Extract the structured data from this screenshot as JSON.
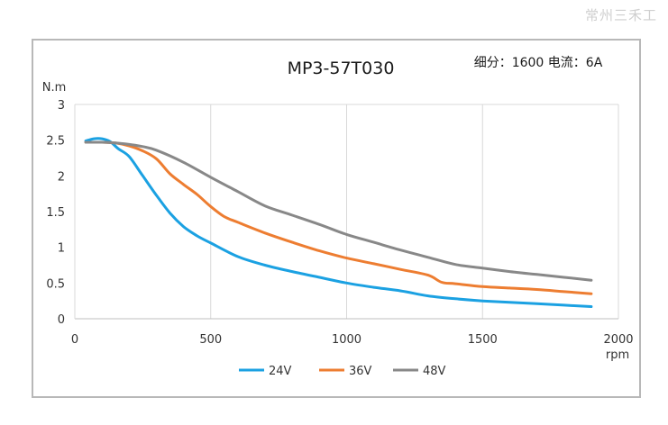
{
  "watermark": "常州三禾工",
  "chart_data": {
    "type": "line",
    "title": "MP3-57T030",
    "subtitle": "细分：1600 电流：6A",
    "ylabel": "N.m",
    "xlabel": "rpm",
    "xlim": [
      0,
      2000
    ],
    "ylim": [
      0,
      3
    ],
    "xticks": [
      0,
      500,
      1000,
      1500,
      2000
    ],
    "yticks": [
      0,
      0.5,
      1,
      1.5,
      2,
      2.5,
      3
    ],
    "ytick_labels": [
      "0",
      "0.5",
      "1",
      "1.5",
      "2",
      "2.5",
      "3"
    ],
    "grid": "vertical",
    "legend": "bottom-center",
    "series": [
      {
        "name": "24V",
        "color": "#1ba1e2",
        "x": [
          40,
          70,
          100,
          130,
          160,
          200,
          250,
          300,
          350,
          400,
          450,
          500,
          600,
          700,
          800,
          900,
          1000,
          1100,
          1200,
          1300,
          1400,
          1500,
          1600,
          1700,
          1800,
          1900
        ],
        "y": [
          2.49,
          2.52,
          2.52,
          2.48,
          2.38,
          2.27,
          2.0,
          1.73,
          1.48,
          1.29,
          1.16,
          1.06,
          0.87,
          0.75,
          0.66,
          0.58,
          0.5,
          0.44,
          0.39,
          0.32,
          0.28,
          0.25,
          0.23,
          0.21,
          0.19,
          0.17
        ]
      },
      {
        "name": "36V",
        "color": "#ed7d31",
        "x": [
          40,
          100,
          150,
          200,
          250,
          300,
          350,
          400,
          450,
          500,
          550,
          600,
          700,
          800,
          900,
          1000,
          1100,
          1200,
          1300,
          1350,
          1400,
          1500,
          1600,
          1700,
          1800,
          1900
        ],
        "y": [
          2.47,
          2.47,
          2.46,
          2.42,
          2.35,
          2.24,
          2.03,
          1.88,
          1.74,
          1.57,
          1.43,
          1.35,
          1.2,
          1.07,
          0.95,
          0.85,
          0.77,
          0.69,
          0.61,
          0.51,
          0.49,
          0.45,
          0.43,
          0.41,
          0.38,
          0.35
        ]
      },
      {
        "name": "48V",
        "color": "#888888",
        "x": [
          40,
          100,
          150,
          200,
          250,
          300,
          400,
          500,
          600,
          700,
          800,
          900,
          1000,
          1100,
          1200,
          1300,
          1400,
          1500,
          1600,
          1700,
          1800,
          1900
        ],
        "y": [
          2.47,
          2.47,
          2.46,
          2.44,
          2.41,
          2.36,
          2.19,
          1.98,
          1.78,
          1.58,
          1.45,
          1.32,
          1.18,
          1.07,
          0.96,
          0.86,
          0.76,
          0.71,
          0.66,
          0.62,
          0.58,
          0.54
        ]
      }
    ]
  }
}
